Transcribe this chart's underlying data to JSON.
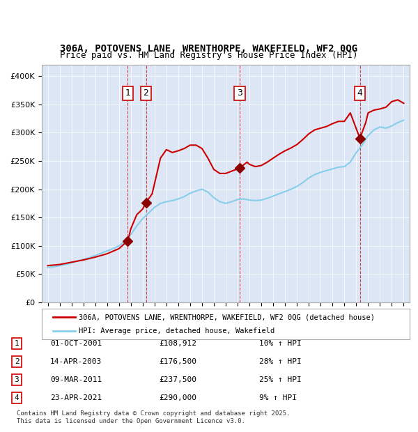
{
  "title_line1": "306A, POTOVENS LANE, WRENTHORPE, WAKEFIELD, WF2 0QG",
  "title_line2": "Price paid vs. HM Land Registry's House Price Index (HPI)",
  "ylabel": "",
  "background_color": "#ffffff",
  "plot_bg_color": "#dce6f5",
  "legend_line1": "306A, POTOVENS LANE, WRENTHORPE, WAKEFIELD, WF2 0QG (detached house)",
  "legend_line2": "HPI: Average price, detached house, Wakefield",
  "footnote": "Contains HM Land Registry data © Crown copyright and database right 2025.\nThis data is licensed under the Open Government Licence v3.0.",
  "transactions": [
    {
      "num": 1,
      "date": "01-OCT-2001",
      "price": 108912,
      "hpi_pct": "10% ↑ HPI",
      "year": 2001.75
    },
    {
      "num": 2,
      "date": "14-APR-2003",
      "price": 176500,
      "hpi_pct": "28% ↑ HPI",
      "year": 2003.28
    },
    {
      "num": 3,
      "date": "09-MAR-2011",
      "price": 237500,
      "hpi_pct": "25% ↑ HPI",
      "year": 2011.18
    },
    {
      "num": 4,
      "date": "23-APR-2021",
      "price": 290000,
      "hpi_pct": "9% ↑ HPI",
      "year": 2021.31
    }
  ],
  "hpi_line_color": "#87CEEB",
  "price_line_color": "#cc0000",
  "marker_color": "#8B0000",
  "ylim": [
    0,
    420000
  ],
  "yticks": [
    0,
    50000,
    100000,
    150000,
    200000,
    250000,
    300000,
    350000,
    400000
  ],
  "ytick_labels": [
    "£0",
    "£50K",
    "£100K",
    "£150K",
    "£200K",
    "£250K",
    "£300K",
    "£350K",
    "£400K"
  ],
  "hpi_data": {
    "years": [
      1995,
      1995.5,
      1996,
      1996.5,
      1997,
      1997.5,
      1998,
      1998.5,
      1999,
      1999.5,
      2000,
      2000.5,
      2001,
      2001.5,
      2002,
      2002.5,
      2003,
      2003.5,
      2004,
      2004.5,
      2005,
      2005.5,
      2006,
      2006.5,
      2007,
      2007.5,
      2008,
      2008.5,
      2009,
      2009.5,
      2010,
      2010.5,
      2011,
      2011.5,
      2012,
      2012.5,
      2013,
      2013.5,
      2014,
      2014.5,
      2015,
      2015.5,
      2016,
      2016.5,
      2017,
      2017.5,
      2018,
      2018.5,
      2019,
      2019.5,
      2020,
      2020.5,
      2021,
      2021.5,
      2022,
      2022.5,
      2023,
      2023.5,
      2024,
      2024.5,
      2025
    ],
    "values": [
      62000,
      63000,
      65000,
      67000,
      70000,
      73000,
      76000,
      79000,
      83000,
      87000,
      91000,
      95000,
      100000,
      108000,
      120000,
      135000,
      148000,
      158000,
      168000,
      175000,
      178000,
      180000,
      183000,
      187000,
      193000,
      197000,
      200000,
      195000,
      185000,
      178000,
      175000,
      178000,
      182000,
      183000,
      181000,
      180000,
      181000,
      184000,
      188000,
      192000,
      196000,
      200000,
      205000,
      212000,
      220000,
      226000,
      230000,
      233000,
      236000,
      239000,
      240000,
      248000,
      265000,
      278000,
      295000,
      305000,
      310000,
      308000,
      312000,
      318000,
      322000
    ]
  },
  "price_data": {
    "years": [
      1995,
      1996,
      1997,
      1998,
      1999,
      2000,
      2001.0,
      2001.75,
      2002,
      2002.5,
      2003,
      2003.28,
      2003.8,
      2004.5,
      2005,
      2005.5,
      2006,
      2006.5,
      2007,
      2007.5,
      2008,
      2008.5,
      2009,
      2009.5,
      2010,
      2010.5,
      2011.18,
      2011.8,
      2012,
      2012.5,
      2013,
      2013.5,
      2014,
      2014.5,
      2015,
      2015.5,
      2016,
      2016.5,
      2017,
      2017.5,
      2018,
      2018.5,
      2019,
      2019.5,
      2020,
      2020.5,
      2021.31,
      2021.8,
      2022,
      2022.5,
      2023,
      2023.5,
      2024,
      2024.5,
      2025
    ],
    "values": [
      65000,
      67000,
      71000,
      75000,
      80000,
      86000,
      95000,
      108912,
      130000,
      155000,
      165000,
      176500,
      192000,
      255000,
      270000,
      265000,
      268000,
      272000,
      278000,
      278000,
      272000,
      255000,
      235000,
      228000,
      228000,
      232000,
      237500,
      248000,
      244000,
      240000,
      242000,
      248000,
      255000,
      262000,
      268000,
      273000,
      279000,
      288000,
      298000,
      305000,
      308000,
      311000,
      316000,
      320000,
      320000,
      335000,
      290000,
      318000,
      335000,
      340000,
      342000,
      345000,
      355000,
      358000,
      352000
    ]
  }
}
